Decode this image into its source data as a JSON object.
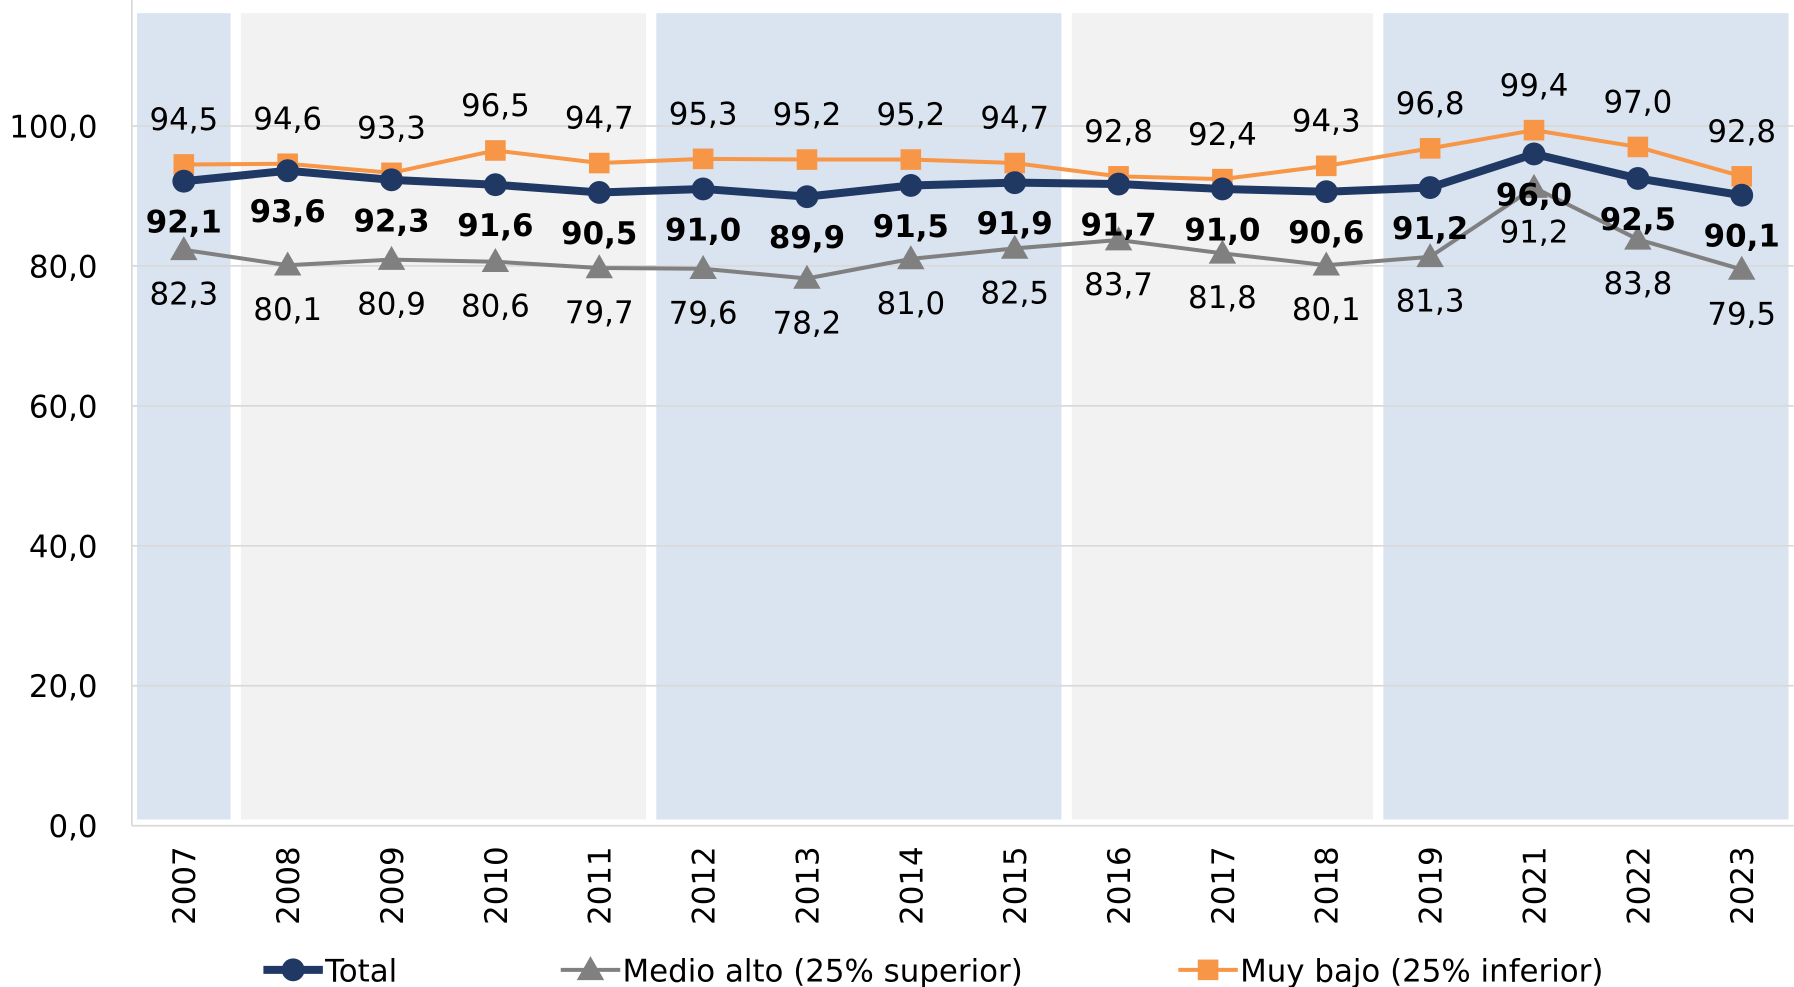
{
  "chart_data": {
    "type": "line",
    "categories": [
      "2007",
      "2008",
      "2009",
      "2010",
      "2011",
      "2012",
      "2013",
      "2014",
      "2015",
      "2016",
      "2017",
      "2018",
      "2019",
      "2021",
      "2022",
      "2023"
    ],
    "ylim": [
      0,
      118
    ],
    "yticks": [
      {
        "value": 0,
        "label": "0,0"
      },
      {
        "value": 20,
        "label": "20,0"
      },
      {
        "value": 40,
        "label": "40,0"
      },
      {
        "value": 60,
        "label": "60,0"
      },
      {
        "value": 80,
        "label": "80,0"
      },
      {
        "value": 100,
        "label": "100,0"
      }
    ],
    "grid": true,
    "legend": "bottom",
    "series": [
      {
        "name": "Total",
        "color": "#203864",
        "marker": "circle",
        "values": [
          92.1,
          93.6,
          92.3,
          91.6,
          90.5,
          91.0,
          89.9,
          91.5,
          91.9,
          91.7,
          91.0,
          90.6,
          91.2,
          96.0,
          92.5,
          90.1
        ],
        "value_labels": [
          "92,1",
          "93,6",
          "92,3",
          "91,6",
          "90,5",
          "91,0",
          "89,9",
          "91,5",
          "91,9",
          "91,7",
          "91,0",
          "90,6",
          "91,2",
          "96,0",
          "92,5",
          "90,1"
        ]
      },
      {
        "name": "Medio alto (25% superior)",
        "color": "#808080",
        "marker": "triangle",
        "values": [
          82.3,
          80.1,
          80.9,
          80.6,
          79.7,
          79.6,
          78.2,
          81.0,
          82.5,
          83.7,
          81.8,
          80.1,
          81.3,
          91.2,
          83.8,
          79.5
        ],
        "value_labels": [
          "82,3",
          "80,1",
          "80,9",
          "80,6",
          "79,7",
          "79,6",
          "78,2",
          "81,0",
          "82,5",
          "83,7",
          "81,8",
          "80,1",
          "81,3",
          "91,2",
          "83,8",
          "79,5"
        ]
      },
      {
        "name": "Muy bajo (25% inferior)",
        "color": "#F79646",
        "marker": "square",
        "values": [
          94.5,
          94.6,
          93.3,
          96.5,
          94.7,
          95.3,
          95.2,
          95.2,
          94.7,
          92.8,
          92.4,
          94.3,
          96.8,
          99.4,
          97.0,
          92.8
        ],
        "value_labels": [
          "94,5",
          "94,6",
          "93,3",
          "96,5",
          "94,7",
          "95,3",
          "95,2",
          "95,2",
          "94,7",
          "92,8",
          "92,4",
          "94,3",
          "96,8",
          "99,4",
          "97,0",
          "92,8"
        ]
      }
    ]
  }
}
